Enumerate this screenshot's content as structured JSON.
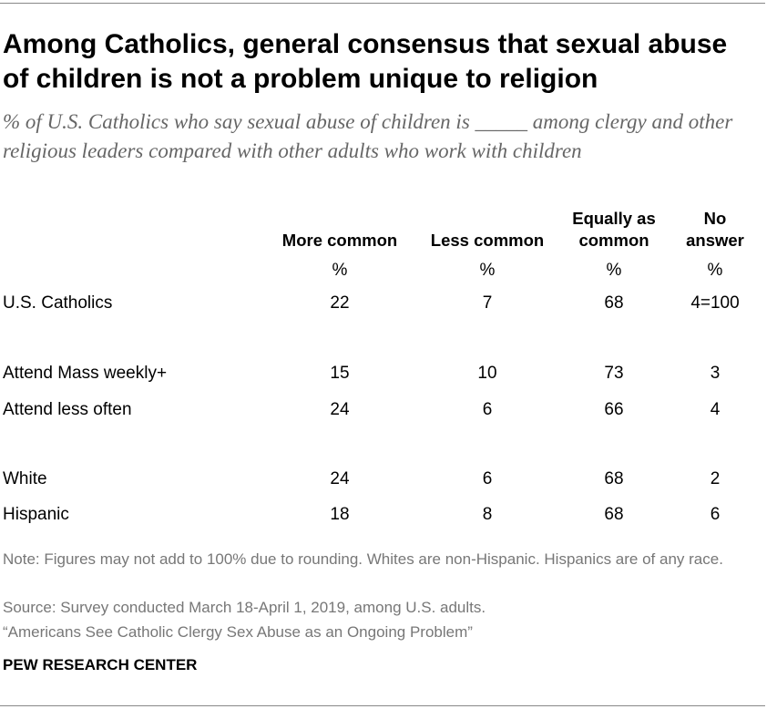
{
  "header": {
    "title": "Among Catholics, general consensus that sexual abuse of children is not a problem unique to religion",
    "subtitle": "% of U.S. Catholics who say sexual abuse of children is _____ among clergy and other religious leaders compared with other adults who work with children"
  },
  "table": {
    "columns": [
      "More common",
      "Less common",
      "Equally as common",
      "No answer"
    ],
    "units": [
      "%",
      "%",
      "%",
      "%"
    ],
    "rows": [
      {
        "label": "U.S. Catholics",
        "values": [
          22,
          7,
          68,
          "4=100"
        ]
      },
      {
        "label": "Attend Mass weekly+",
        "values": [
          15,
          10,
          73,
          3
        ]
      },
      {
        "label": "Attend less often",
        "values": [
          24,
          6,
          66,
          4
        ]
      },
      {
        "label": "White",
        "values": [
          24,
          6,
          68,
          2
        ]
      },
      {
        "label": "Hispanic",
        "values": [
          18,
          8,
          68,
          6
        ]
      }
    ]
  },
  "footer": {
    "note": "Note: Figures may not add to 100% due to rounding. Whites are non-Hispanic. Hispanics are of any race.",
    "source": "Source: Survey conducted March 18-April 1, 2019, among U.S. adults.",
    "report": "“Americans See Catholic Clergy Sex Abuse as an Ongoing Problem”",
    "brand": "PEW RESEARCH CENTER"
  }
}
